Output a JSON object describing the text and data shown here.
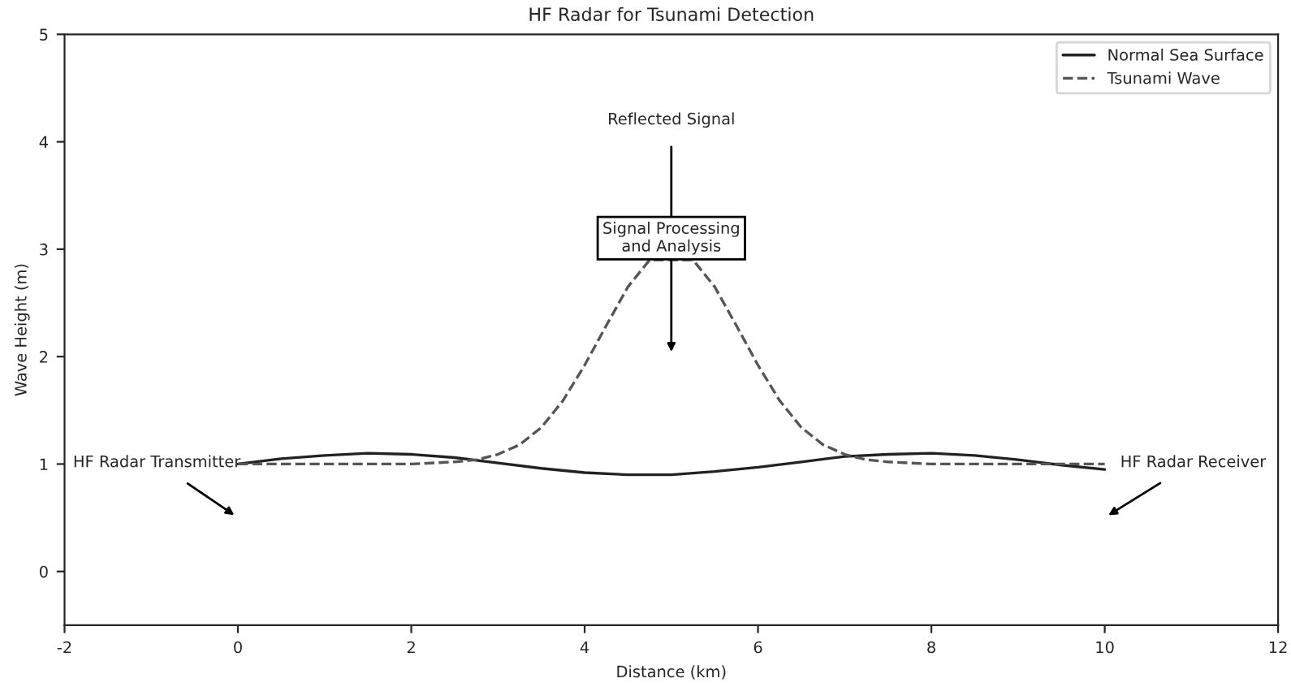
{
  "chart_data": {
    "type": "line",
    "title": "HF Radar for Tsunami Detection",
    "xlabel": "Distance (km)",
    "ylabel": "Wave Height (m)",
    "series": [
      {
        "name": "Normal Sea Surface",
        "color": "#222222",
        "line_style": "solid",
        "x": [
          0,
          0.5,
          1,
          1.5,
          2,
          2.5,
          3,
          3.5,
          4,
          4.5,
          5,
          5.5,
          6,
          6.5,
          7,
          7.5,
          8,
          8.5,
          9,
          9.5,
          10
        ],
        "values": [
          1.0,
          1.05,
          1.08,
          1.1,
          1.09,
          1.06,
          1.01,
          0.96,
          0.92,
          0.9,
          0.9,
          0.93,
          0.97,
          1.02,
          1.07,
          1.09,
          1.1,
          1.08,
          1.04,
          0.99,
          0.95
        ]
      },
      {
        "name": "Tsunami Wave",
        "color": "#555555",
        "line_style": "dashed",
        "x": [
          0,
          1,
          2,
          2.5,
          2.75,
          3,
          3.25,
          3.5,
          3.75,
          4,
          4.25,
          4.5,
          4.75,
          5,
          5.25,
          5.5,
          5.75,
          6,
          6.25,
          6.5,
          6.75,
          7,
          7.25,
          7.5,
          8,
          9,
          10
        ],
        "values": [
          1.0,
          1.0,
          1.0,
          1.02,
          1.04,
          1.09,
          1.18,
          1.34,
          1.59,
          1.92,
          2.29,
          2.65,
          2.9,
          null,
          2.9,
          2.65,
          2.29,
          1.92,
          1.59,
          1.34,
          1.18,
          1.09,
          1.04,
          1.02,
          1.0,
          1.0,
          1.0
        ]
      }
    ],
    "annotations": [
      "HF Radar Transmitter",
      "HF Radar Receiver",
      "Reflected Signal",
      "Signal Processing\nand Analysis"
    ],
    "xlim": [
      -2,
      12
    ],
    "xticks": [
      -2,
      0,
      2,
      4,
      6,
      8,
      10,
      12
    ],
    "ylim": [
      -0.5,
      5
    ],
    "yticks": [
      0,
      1,
      2,
      3,
      4,
      5
    ],
    "grid": false,
    "legend": "top right"
  }
}
